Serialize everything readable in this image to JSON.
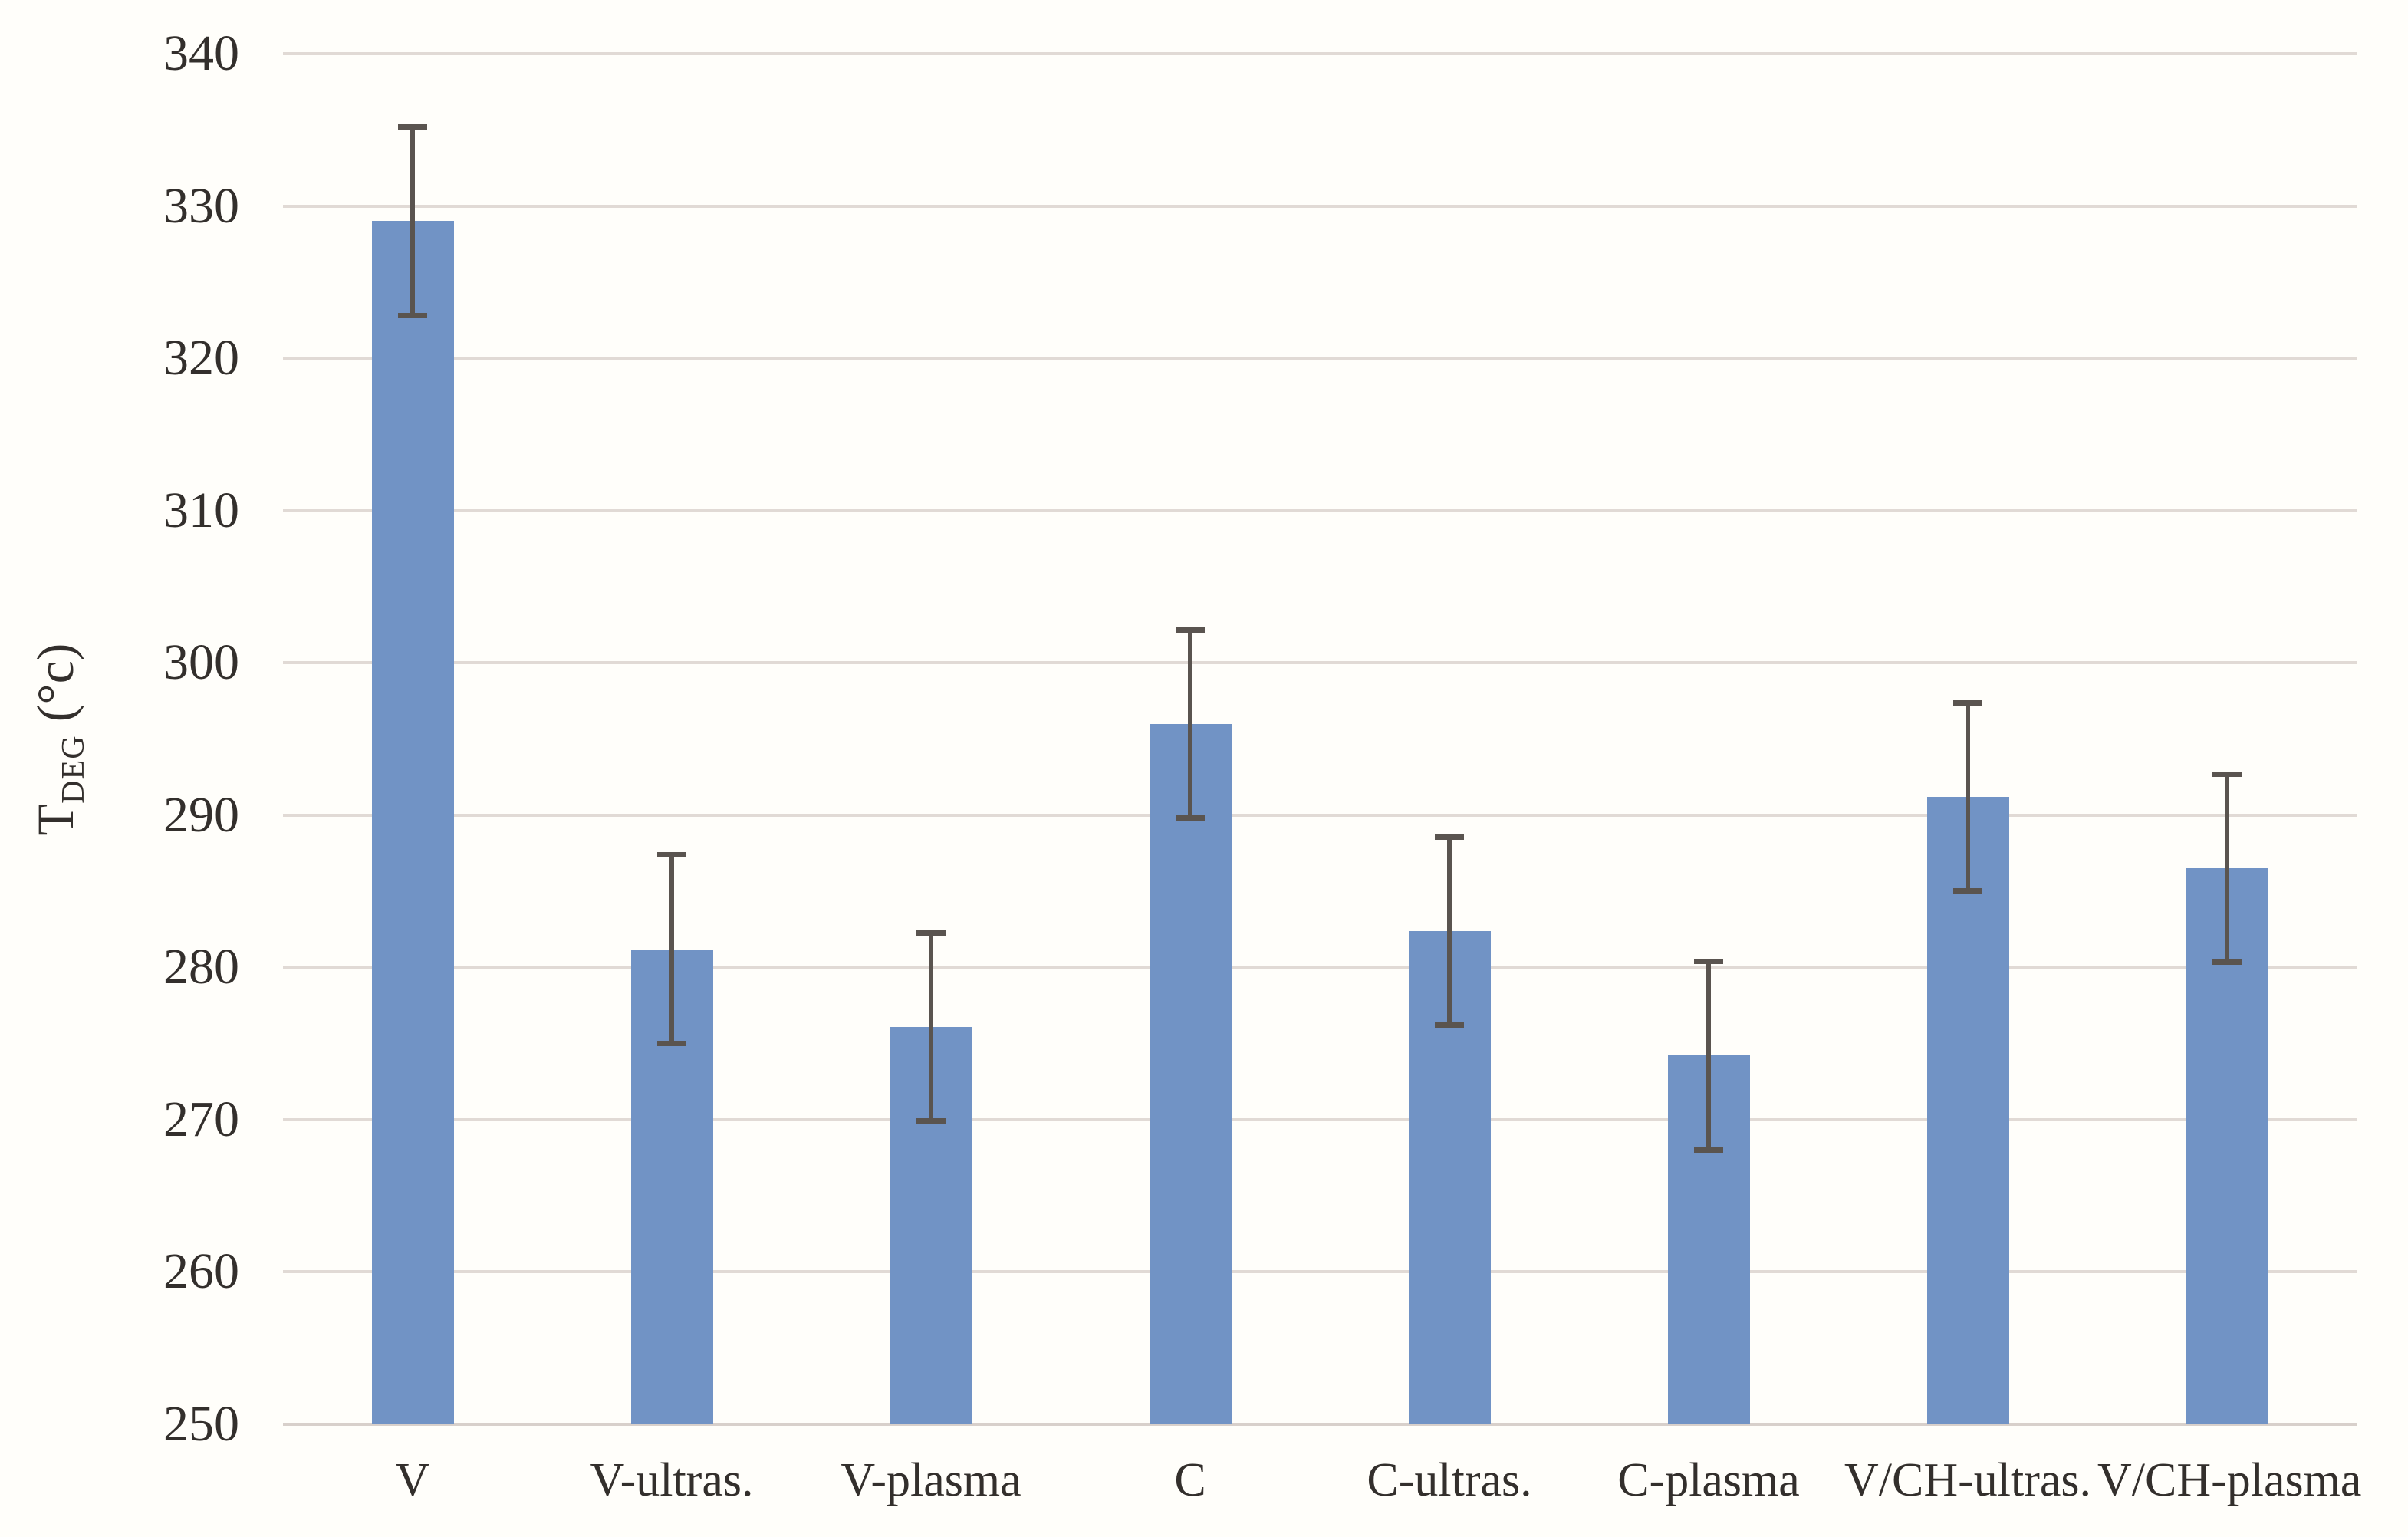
{
  "chart_data": {
    "type": "bar",
    "title": "",
    "xlabel": "",
    "ylabel": "T_DEG (°c)",
    "ylabel_parts": {
      "base": "T",
      "subscript": "DEG",
      "unit": " (°c)"
    },
    "categories": [
      "V",
      "V-ultras.",
      "V-plasma",
      "C",
      "C-ultras.",
      "C-plasma",
      "V/CH-ultras.",
      "V/CH-plasma"
    ],
    "values": [
      329.0,
      281.2,
      276.1,
      296.0,
      282.4,
      274.2,
      291.2,
      286.5
    ],
    "errors": [
      6.2,
      6.2,
      6.2,
      6.2,
      6.2,
      6.2,
      6.2,
      6.2
    ],
    "ylim": [
      250,
      340
    ],
    "ytick_step": 10,
    "yticks": [
      250,
      260,
      270,
      280,
      290,
      300,
      310,
      320,
      330,
      340
    ],
    "grid": "horizontal",
    "legend": "none",
    "colors": {
      "bar": "#7193C5",
      "error_bar": "#5A544F",
      "gridline": "#E1DAD5",
      "axis_line": "#D8D0CB",
      "text": "#332F2C",
      "background": "#FFFEFA"
    }
  }
}
